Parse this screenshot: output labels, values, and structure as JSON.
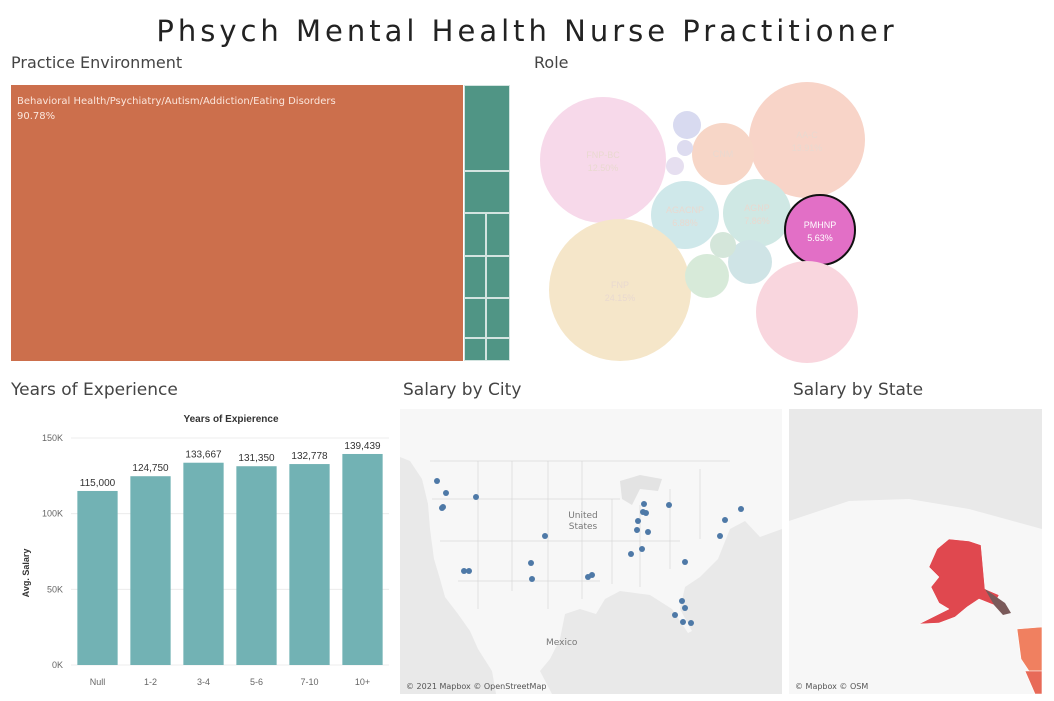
{
  "title": "Phsych Mental Health Nurse Practitioner",
  "practice_environment": {
    "title": "Practice Environment",
    "main_label": "Behavioral Health/Psychiatry/Autism/Addiction/Eating Disorders",
    "main_value": "90.78%",
    "colors": {
      "main": "#cc6f4c",
      "other": "#509585"
    }
  },
  "role": {
    "title": "Role",
    "bubbles": [
      {
        "label": "FNP-BC",
        "value": "12.50%",
        "color": "#f7d9ea"
      },
      {
        "label": "AA-C",
        "value": "13.91%",
        "color": "#f8d4c8"
      },
      {
        "label": "CNM",
        "value": "",
        "color": "#f7d6c7"
      },
      {
        "label": "AGACNP",
        "value": "6.88%",
        "color": "#cfe8ea"
      },
      {
        "label": "AGNP",
        "value": "7.86%",
        "color": "#cfe8e4"
      },
      {
        "label": "PMHNP",
        "value": "5.63%",
        "color": "#e26fc6",
        "highlighted": true
      },
      {
        "label": "FNP",
        "value": "24.15%",
        "color": "#f5e6c9"
      },
      {
        "label": "",
        "value": "",
        "color": "#f9d6de"
      },
      {
        "label": "",
        "value": "",
        "color": "#d7ead9"
      },
      {
        "label": "",
        "value": "",
        "color": "#cfe4e6"
      },
      {
        "label": "",
        "value": "",
        "color": "#d4e6da"
      },
      {
        "label": "",
        "value": "",
        "color": "#d8daf0"
      },
      {
        "label": "",
        "value": "",
        "color": "#dddcf0"
      },
      {
        "label": "",
        "value": "",
        "color": "#e6dff0"
      }
    ]
  },
  "experience": {
    "title": "Years of Experience",
    "chart_title": "Years of Expierence",
    "ylabel": "Avg. Salary",
    "bar_color": "#72b2b4"
  },
  "city": {
    "title": "Salary by City",
    "attribution": "© 2021 Mapbox © OpenStreetMap",
    "label_us": "United States",
    "label_mexico": "Mexico",
    "dot_color": "#4e79a7"
  },
  "state": {
    "title": "Salary by State",
    "attribution": "© Mapbox © OSM",
    "colors": {
      "alaska": "#e0484f",
      "other": "#f08060"
    }
  },
  "chart_data": {
    "type": "bar",
    "title": "Years of Expierence",
    "xlabel": "",
    "ylabel": "Avg. Salary",
    "categories": [
      "Null",
      "1-2",
      "3-4",
      "5-6",
      "7-10",
      "10+"
    ],
    "values": [
      115000,
      124750,
      133667,
      131350,
      132778,
      139439
    ],
    "value_labels": [
      "115,000",
      "124,750",
      "133,667",
      "131,350",
      "132,778",
      "139,439"
    ],
    "ylim": [
      0,
      150000
    ],
    "yticks": [
      0,
      50000,
      100000,
      150000
    ],
    "ytick_labels": [
      "0K",
      "50K",
      "100K",
      "150K"
    ],
    "grid": true
  }
}
